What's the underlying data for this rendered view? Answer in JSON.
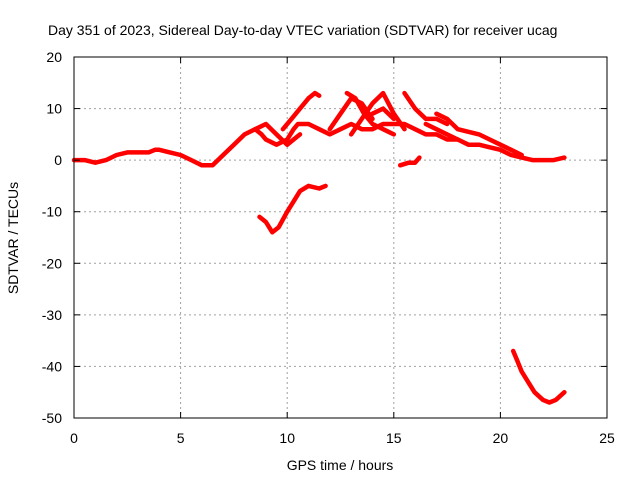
{
  "chart_data": {
    "type": "line",
    "title": "Day 351 of 2023, Sidereal Day-to-day VTEC variation (SDTVAR) for receiver ucag",
    "xlabel": "GPS time / hours",
    "ylabel": "SDTVAR / TECUs",
    "xlim": [
      0,
      25
    ],
    "ylim": [
      -50,
      20
    ],
    "xticks": [
      0,
      5,
      10,
      15,
      20,
      25
    ],
    "yticks": [
      20,
      10,
      0,
      -10,
      -20,
      -30,
      -40,
      -50
    ],
    "grid": true,
    "series_color": "#ff0000",
    "series": [
      {
        "name": "trace-main",
        "x": [
          0,
          0.5,
          1.0,
          1.5,
          2.0,
          2.5,
          3.0,
          3.5,
          3.8,
          4.0,
          4.5,
          5.0,
          5.5,
          6.0,
          6.5,
          7.0,
          7.5,
          8.0,
          8.5,
          8.8,
          9.0,
          9.5,
          10.0,
          10.3,
          10.5,
          11.0,
          11.5,
          12.0,
          12.5,
          13.0,
          13.5,
          14.0,
          14.5,
          15.0,
          15.5,
          16.0,
          16.5,
          17.0,
          17.5,
          18.0,
          18.5,
          19.0,
          19.5,
          20.0,
          20.5,
          21.0,
          21.5,
          22.0,
          22.5,
          23.0
        ],
        "y": [
          0,
          0,
          -0.5,
          0,
          1,
          1.5,
          1.5,
          1.5,
          2,
          2,
          1.5,
          1,
          0,
          -1,
          -1,
          1,
          3,
          5,
          6,
          5,
          4,
          3,
          4,
          6,
          7,
          7,
          6,
          5,
          6,
          7,
          6,
          6,
          7,
          7,
          7,
          6,
          5,
          5,
          4,
          4,
          3,
          3,
          2.5,
          2,
          1,
          0.5,
          0,
          0,
          0,
          0.5
        ]
      },
      {
        "name": "trace-upper-a",
        "x": [
          8.5,
          9.0,
          9.5,
          10.0,
          10.3,
          10.6
        ],
        "y": [
          6,
          7,
          5,
          3,
          4,
          5
        ]
      },
      {
        "name": "trace-upper-b",
        "x": [
          9.8,
          10.2,
          10.6,
          11.0,
          11.3,
          11.5
        ],
        "y": [
          6,
          8,
          10,
          12,
          13,
          12.5
        ]
      },
      {
        "name": "trace-upper-c",
        "x": [
          12.0,
          12.5,
          13.0,
          13.5,
          14.0
        ],
        "y": [
          6,
          9,
          12,
          11,
          8
        ]
      },
      {
        "name": "trace-upper-d",
        "x": [
          12.8,
          13.2,
          13.6,
          14.0,
          14.5,
          15.0
        ],
        "y": [
          13,
          12,
          9,
          7,
          6,
          5
        ]
      },
      {
        "name": "trace-upper-e",
        "x": [
          13.0,
          13.5,
          14.0,
          14.5,
          15.0,
          15.5
        ],
        "y": [
          5,
          8,
          11,
          13,
          9,
          6
        ]
      },
      {
        "name": "trace-upper-f",
        "x": [
          15.5,
          16.0,
          16.5,
          17.0,
          17.5
        ],
        "y": [
          13,
          10,
          8,
          8,
          7
        ]
      },
      {
        "name": "trace-upper-g",
        "x": [
          17.0,
          17.5,
          18.0,
          18.5,
          19.0,
          19.5,
          20.0,
          20.5,
          21.0
        ],
        "y": [
          9,
          8,
          6,
          5.5,
          5,
          4,
          3,
          2,
          1
        ]
      },
      {
        "name": "trace-upper-h",
        "x": [
          14.0,
          14.5,
          15.0
        ],
        "y": [
          9,
          10,
          8
        ]
      },
      {
        "name": "trace-upper-i",
        "x": [
          16.5,
          17.0,
          17.5,
          18.0
        ],
        "y": [
          7,
          6,
          5,
          4
        ]
      },
      {
        "name": "trace-dip-mid",
        "x": [
          8.7,
          9.0,
          9.3,
          9.6,
          10.0,
          10.3,
          10.6,
          11.0,
          11.5,
          11.8
        ],
        "y": [
          -11,
          -12,
          -14,
          -13,
          -10,
          -8,
          -6,
          -5,
          -5.5,
          -5
        ]
      },
      {
        "name": "trace-small-15h",
        "x": [
          15.3,
          15.7,
          16.0,
          16.2
        ],
        "y": [
          -1,
          -0.5,
          -0.5,
          0.5
        ]
      },
      {
        "name": "trace-low-late",
        "x": [
          20.6,
          20.8,
          21.0,
          21.3,
          21.6,
          22.0,
          22.3,
          22.6,
          23.0
        ],
        "y": [
          -37,
          -39,
          -41,
          -43,
          -45,
          -46.5,
          -47,
          -46.5,
          -45
        ]
      }
    ]
  }
}
